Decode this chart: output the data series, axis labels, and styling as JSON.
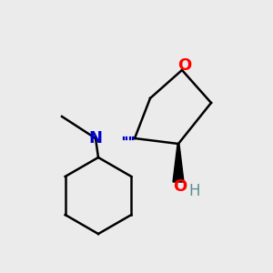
{
  "background_color": "#ebebeb",
  "atom_colors": {
    "O": "#ff0000",
    "N": "#0000cc",
    "C": "#000000",
    "OH_H": "#5a9090"
  },
  "lw": 1.8,
  "figsize": [
    3.0,
    3.0
  ],
  "dpi": 100
}
